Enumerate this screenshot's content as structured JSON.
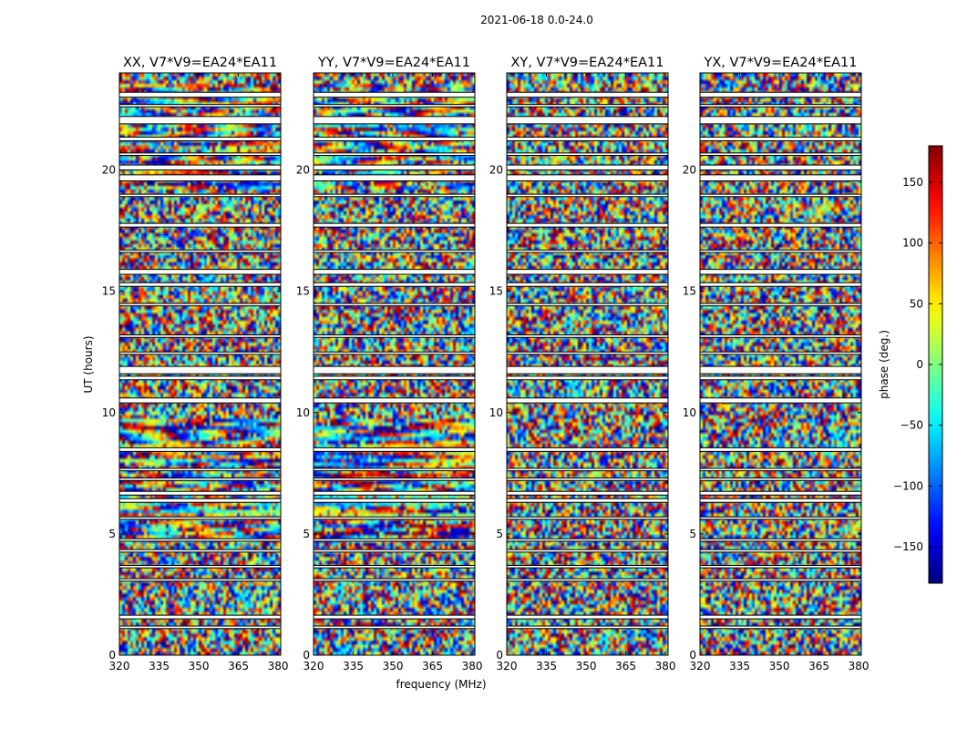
{
  "chart_data": {
    "type": "heatmap",
    "title": "2021-06-18 0.0-24.0",
    "xlabel": "frequency (MHz)",
    "ylabel": "UT (hours)",
    "xlim": [
      320,
      381
    ],
    "ylim": [
      0,
      24
    ],
    "xticks": [
      320,
      335,
      350,
      365,
      380
    ],
    "yticks": [
      0,
      5,
      10,
      15,
      20
    ],
    "panels": [
      {
        "title": "XX, V7*V9=EA24*EA11",
        "coherence": "high"
      },
      {
        "title": "YY, V7*V9=EA24*EA11",
        "coherence": "high"
      },
      {
        "title": "XY, V7*V9=EA24*EA11",
        "coherence": "low"
      },
      {
        "title": "YX, V7*V9=EA24*EA11",
        "coherence": "low"
      }
    ],
    "colorbar": {
      "label": "phase (deg.)",
      "range": [
        -180,
        180
      ],
      "ticks": [
        150,
        100,
        50,
        0,
        -50,
        -100,
        -150
      ],
      "tick_labels": [
        "150",
        "100",
        "50",
        "0",
        "−50",
        "−100",
        "−150"
      ],
      "colormap": "jet"
    },
    "flagged_ut_bands": [
      [
        23.0,
        23.2
      ],
      [
        22.6,
        22.7
      ],
      [
        21.9,
        22.2
      ],
      [
        21.2,
        21.35
      ],
      [
        20.6,
        20.7
      ],
      [
        20.0,
        20.2
      ],
      [
        19.55,
        19.8
      ],
      [
        18.9,
        19.0
      ],
      [
        17.65,
        17.8
      ],
      [
        16.6,
        16.7
      ],
      [
        15.7,
        15.9
      ],
      [
        15.2,
        15.35
      ],
      [
        14.4,
        14.5
      ],
      [
        13.1,
        13.2
      ],
      [
        12.4,
        12.5
      ],
      [
        11.6,
        11.9
      ],
      [
        11.35,
        11.5
      ],
      [
        10.4,
        10.6
      ],
      [
        8.4,
        8.55
      ],
      [
        7.6,
        7.7
      ],
      [
        7.2,
        7.3
      ],
      [
        6.6,
        6.75
      ],
      [
        6.3,
        6.45
      ],
      [
        5.6,
        5.7
      ],
      [
        4.7,
        4.8
      ],
      [
        4.25,
        4.35
      ],
      [
        3.6,
        3.7
      ],
      [
        3.05,
        3.15
      ],
      [
        1.5,
        1.65
      ],
      [
        1.1,
        1.2
      ]
    ]
  }
}
